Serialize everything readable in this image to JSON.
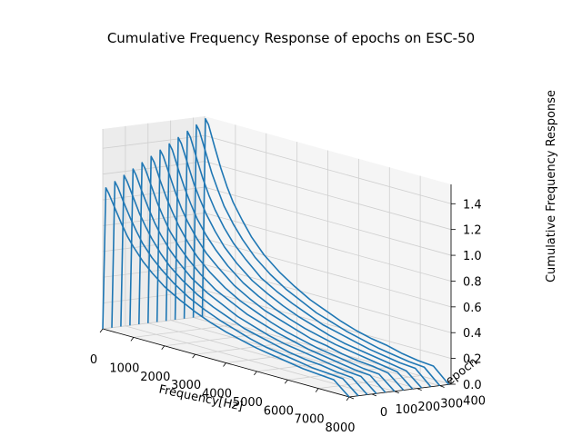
{
  "chart_data": {
    "type": "line",
    "projection": "3d",
    "title": "Cumulative Frequency Response of epochs on ESC-50",
    "xlabel": "Frequency[Hz]",
    "ylabel": "epoch",
    "zlabel": "Cumulative Frequency Response",
    "xlim": [
      0,
      8000
    ],
    "ylim": [
      0,
      450
    ],
    "zlim": [
      0,
      1.55
    ],
    "x_ticks": [
      0,
      1000,
      2000,
      3000,
      4000,
      5000,
      6000,
      7000,
      8000
    ],
    "y_ticks": [
      0,
      100,
      200,
      300,
      400
    ],
    "z_ticks": [
      0.0,
      0.2,
      0.4,
      0.6,
      0.8,
      1.0,
      1.2,
      1.4
    ],
    "x_tick_labels": [
      "0",
      "1000",
      "2000",
      "3000",
      "4000",
      "5000",
      "6000",
      "7000",
      "8000"
    ],
    "y_tick_labels": [
      "0",
      "100",
      "200",
      "300",
      "400"
    ],
    "z_tick_labels": [
      "0.0",
      "0.2",
      "0.4",
      "0.6",
      "0.8",
      "1.0",
      "1.2",
      "1.4"
    ],
    "grid": true,
    "line_color": "#1f77b4",
    "pane_color": "#f2f2f2",
    "frequency_hz": [
      0,
      100,
      200,
      400,
      600,
      800,
      1000,
      1300,
      1600,
      2000,
      2500,
      3000,
      3500,
      4000,
      4500,
      5000,
      5500,
      6000,
      6500,
      7000,
      7500,
      8000
    ],
    "series": [
      {
        "epoch": 0,
        "values": [
          0.0,
          1.1,
          1.06,
          0.96,
          0.86,
          0.77,
          0.7,
          0.61,
          0.54,
          0.46,
          0.39,
          0.33,
          0.28,
          0.24,
          0.21,
          0.18,
          0.16,
          0.14,
          0.12,
          0.11,
          0.1,
          0.0
        ]
      },
      {
        "epoch": 40,
        "values": [
          0.0,
          1.14,
          1.1,
          0.99,
          0.89,
          0.8,
          0.72,
          0.63,
          0.56,
          0.48,
          0.4,
          0.34,
          0.29,
          0.25,
          0.21,
          0.18,
          0.16,
          0.14,
          0.12,
          0.11,
          0.1,
          0.0
        ]
      },
      {
        "epoch": 80,
        "values": [
          0.0,
          1.18,
          1.14,
          1.03,
          0.92,
          0.83,
          0.75,
          0.65,
          0.57,
          0.49,
          0.41,
          0.35,
          0.3,
          0.25,
          0.22,
          0.19,
          0.16,
          0.14,
          0.13,
          0.11,
          0.1,
          0.0
        ]
      },
      {
        "epoch": 120,
        "values": [
          0.0,
          1.22,
          1.18,
          1.06,
          0.95,
          0.85,
          0.77,
          0.67,
          0.59,
          0.5,
          0.42,
          0.36,
          0.3,
          0.26,
          0.22,
          0.19,
          0.17,
          0.15,
          0.13,
          0.11,
          0.1,
          0.0
        ]
      },
      {
        "epoch": 160,
        "values": [
          0.0,
          1.26,
          1.22,
          1.1,
          0.98,
          0.88,
          0.79,
          0.69,
          0.61,
          0.52,
          0.43,
          0.37,
          0.31,
          0.27,
          0.23,
          0.2,
          0.17,
          0.15,
          0.13,
          0.11,
          0.1,
          0.0
        ]
      },
      {
        "epoch": 200,
        "values": [
          0.0,
          1.3,
          1.26,
          1.13,
          1.01,
          0.91,
          0.82,
          0.71,
          0.62,
          0.53,
          0.44,
          0.37,
          0.32,
          0.27,
          0.23,
          0.2,
          0.17,
          0.15,
          0.13,
          0.11,
          0.1,
          0.0
        ]
      },
      {
        "epoch": 240,
        "values": [
          0.0,
          1.34,
          1.3,
          1.17,
          1.04,
          0.93,
          0.84,
          0.73,
          0.64,
          0.55,
          0.45,
          0.38,
          0.32,
          0.28,
          0.24,
          0.2,
          0.18,
          0.15,
          0.13,
          0.12,
          0.1,
          0.0
        ]
      },
      {
        "epoch": 280,
        "values": [
          0.0,
          1.38,
          1.34,
          1.2,
          1.07,
          0.96,
          0.86,
          0.75,
          0.66,
          0.56,
          0.46,
          0.39,
          0.33,
          0.28,
          0.24,
          0.21,
          0.18,
          0.16,
          0.14,
          0.12,
          0.1,
          0.0
        ]
      },
      {
        "epoch": 320,
        "values": [
          0.0,
          1.42,
          1.38,
          1.24,
          1.1,
          0.99,
          0.89,
          0.77,
          0.67,
          0.57,
          0.47,
          0.4,
          0.34,
          0.29,
          0.25,
          0.21,
          0.18,
          0.16,
          0.14,
          0.12,
          0.1,
          0.0
        ]
      },
      {
        "epoch": 360,
        "values": [
          0.0,
          1.46,
          1.42,
          1.27,
          1.13,
          1.01,
          0.91,
          0.79,
          0.69,
          0.59,
          0.48,
          0.41,
          0.35,
          0.3,
          0.25,
          0.22,
          0.19,
          0.16,
          0.14,
          0.12,
          0.11,
          0.0
        ]
      },
      {
        "epoch": 400,
        "values": [
          0.0,
          1.5,
          1.46,
          1.31,
          1.16,
          1.04,
          0.93,
          0.81,
          0.71,
          0.6,
          0.5,
          0.42,
          0.36,
          0.3,
          0.26,
          0.22,
          0.19,
          0.16,
          0.14,
          0.12,
          0.11,
          0.0
        ]
      },
      {
        "epoch": 440,
        "values": [
          0.0,
          1.54,
          1.5,
          1.34,
          1.19,
          1.06,
          0.95,
          0.83,
          0.72,
          0.61,
          0.51,
          0.43,
          0.36,
          0.31,
          0.26,
          0.22,
          0.19,
          0.17,
          0.14,
          0.12,
          0.11,
          0.0
        ]
      }
    ]
  }
}
